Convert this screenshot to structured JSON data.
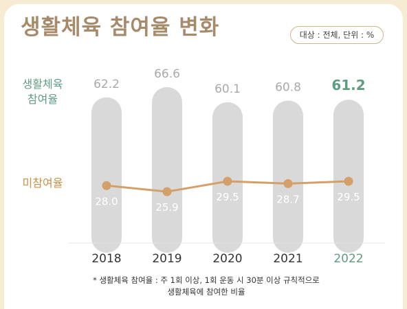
{
  "title": "생활체육 참여율 변화",
  "unit_note": "대상 : 전체, 단위 : %",
  "legend": {
    "participation": "생활체육\n참여율",
    "non_participation": "미참여율"
  },
  "footnote": {
    "line1": "* 생활체육 참여율 : 주 1회 이상, 1회 운동 시 30분 이상 규칙적으로",
    "line2": "생활체육에 참여한 비율"
  },
  "colors": {
    "bar": "#d9d9d9",
    "bar_label": "#a9a9a9",
    "highlight": "#5f9c81",
    "line": "#d4a069",
    "title": "#a68a6a"
  },
  "chart_data": {
    "type": "bar",
    "categories": [
      "2018",
      "2019",
      "2020",
      "2021",
      "2022"
    ],
    "series": [
      {
        "name": "생활체육 참여율",
        "type": "bar",
        "values": [
          62.2,
          66.6,
          60.1,
          60.8,
          61.2
        ]
      },
      {
        "name": "미참여율",
        "type": "line",
        "values": [
          28.0,
          25.9,
          29.5,
          28.7,
          29.5
        ]
      }
    ],
    "value_labels": {
      "bar": [
        "62.2",
        "66.6",
        "60.1",
        "60.8",
        "61.2"
      ],
      "line": [
        "28.0",
        "25.9",
        "29.5",
        "28.7",
        "29.5"
      ]
    },
    "highlight_category": "2022",
    "ylim": [
      0,
      70
    ]
  }
}
